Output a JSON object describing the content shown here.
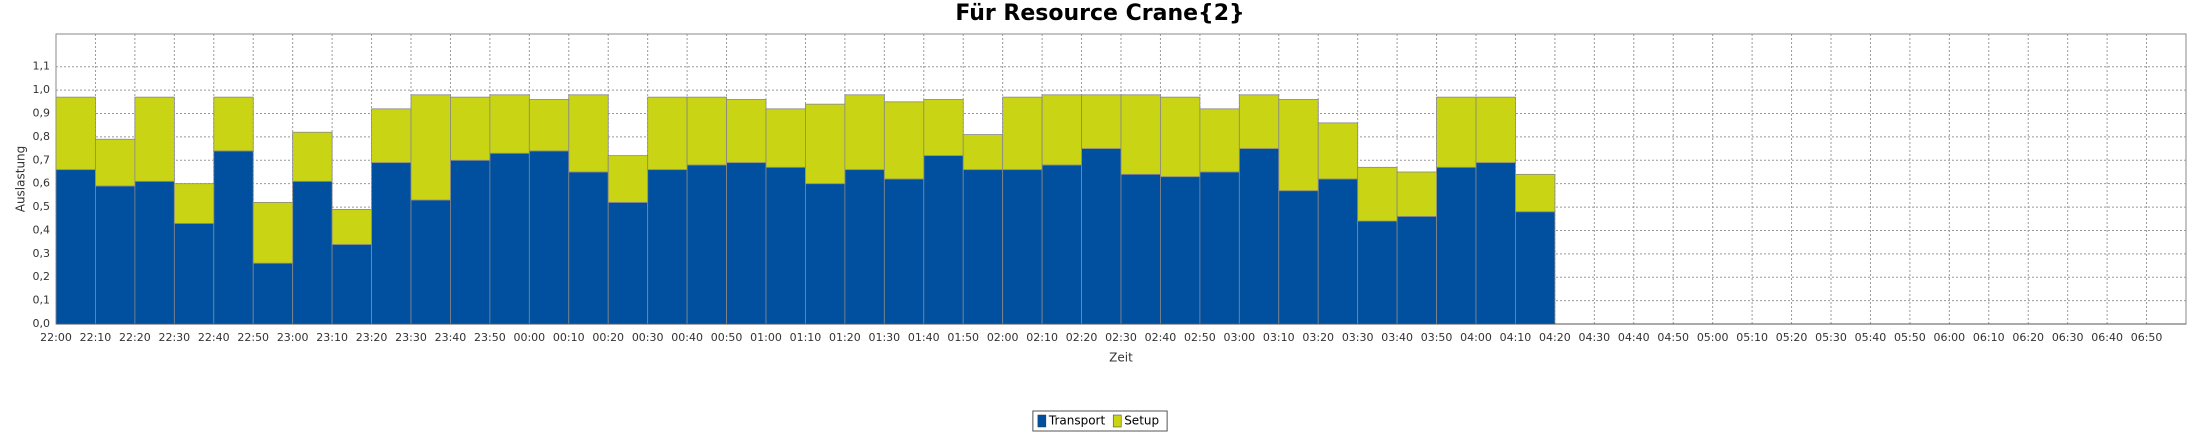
{
  "chart_data": {
    "type": "stacked_bar",
    "title": "Für Resource Crane{2}",
    "xlabel": "Zeit",
    "ylabel": "Auslastung",
    "categories": [
      "22:00",
      "22:10",
      "22:20",
      "22:30",
      "22:40",
      "22:50",
      "23:00",
      "23:10",
      "23:20",
      "23:30",
      "23:40",
      "23:50",
      "00:00",
      "00:10",
      "00:20",
      "00:30",
      "00:40",
      "00:50",
      "01:00",
      "01:10",
      "01:20",
      "01:30",
      "01:40",
      "01:50",
      "02:00",
      "02:10",
      "02:20",
      "02:30",
      "02:40",
      "02:50",
      "03:00",
      "03:10",
      "03:20",
      "03:30",
      "03:40",
      "03:50",
      "04:00",
      "04:10",
      "04:20",
      "04:30",
      "04:40",
      "04:50",
      "05:00",
      "05:10",
      "05:20",
      "05:30",
      "05:40",
      "05:50",
      "06:00",
      "06:10",
      "06:20",
      "06:30",
      "06:40",
      "06:50"
    ],
    "series": [
      {
        "name": "Transport",
        "color": "#00509f",
        "values": [
          0.66,
          0.59,
          0.61,
          0.43,
          0.74,
          0.26,
          0.61,
          0.34,
          0.69,
          0.53,
          0.7,
          0.73,
          0.74,
          0.65,
          0.52,
          0.66,
          0.68,
          0.69,
          0.67,
          0.6,
          0.66,
          0.62,
          0.72,
          0.66,
          0.66,
          0.68,
          0.75,
          0.64,
          0.63,
          0.65,
          0.75,
          0.57,
          0.62,
          0.44,
          0.46,
          0.67,
          0.69,
          0.48,
          null,
          null,
          null,
          null,
          null,
          null,
          null,
          null,
          null,
          null,
          null,
          null,
          null,
          null,
          null,
          null
        ]
      },
      {
        "name": "Setup",
        "color": "#c8d414",
        "values": [
          0.31,
          0.2,
          0.36,
          0.17,
          0.23,
          0.26,
          0.21,
          0.15,
          0.23,
          0.45,
          0.27,
          0.25,
          0.22,
          0.33,
          0.2,
          0.31,
          0.29,
          0.27,
          0.25,
          0.34,
          0.32,
          0.33,
          0.24,
          0.15,
          0.31,
          0.3,
          0.23,
          0.34,
          0.34,
          0.27,
          0.23,
          0.39,
          0.24,
          0.23,
          0.19,
          0.3,
          0.28,
          0.16,
          null,
          null,
          null,
          null,
          null,
          null,
          null,
          null,
          null,
          null,
          null,
          null,
          null,
          null,
          null,
          null
        ]
      }
    ],
    "ylim": [
      0,
      1.24
    ],
    "yticks": [
      {
        "value": 0,
        "label": "0,0"
      },
      {
        "value": 0.1,
        "label": "0,1"
      },
      {
        "value": 0.2,
        "label": "0,2"
      },
      {
        "value": 0.3,
        "label": "0,3"
      },
      {
        "value": 0.4,
        "label": "0,4"
      },
      {
        "value": 0.5,
        "label": "0,5"
      },
      {
        "value": 0.6,
        "label": "0,6"
      },
      {
        "value": 0.7,
        "label": "0,7"
      },
      {
        "value": 0.8,
        "label": "0,8"
      },
      {
        "value": 0.9,
        "label": "0,9"
      },
      {
        "value": 1.0,
        "label": "1,0"
      },
      {
        "value": 1.1,
        "label": "1,1"
      }
    ],
    "grid": true
  }
}
